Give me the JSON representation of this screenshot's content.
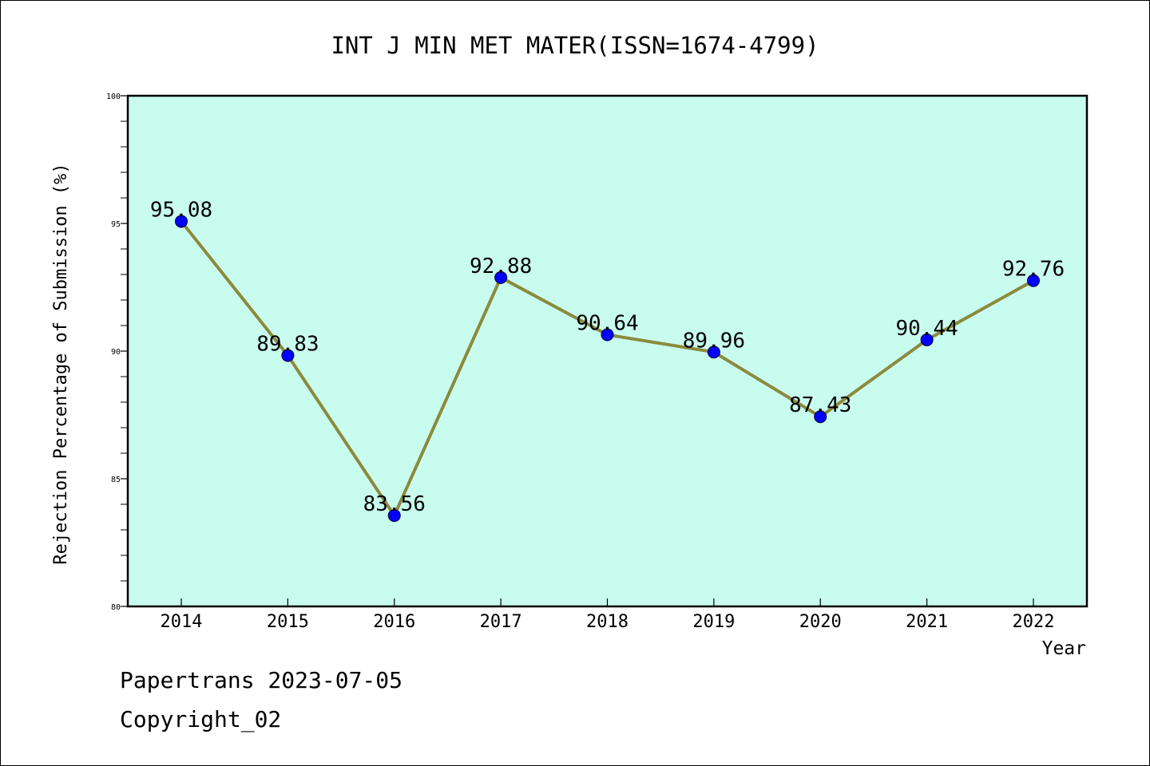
{
  "chart_data": {
    "type": "line",
    "title": "INT J MIN MET MATER(ISSN=1674-4799)",
    "xlabel": "Year",
    "ylabel": "Rejection Percentage of Submission (%)",
    "categories": [
      "2014",
      "2015",
      "2016",
      "2017",
      "2018",
      "2019",
      "2020",
      "2021",
      "2022"
    ],
    "series": [
      {
        "values": [
          95.08,
          89.83,
          83.56,
          92.88,
          90.64,
          89.96,
          87.43,
          90.44,
          92.76
        ],
        "data_labels": [
          "95.08",
          "89.83",
          "83.56",
          "92.88",
          "90.64",
          "89.96",
          "87.43",
          "90.44",
          "92.76"
        ]
      }
    ],
    "ylim": [
      80,
      100
    ],
    "yticks": [
      "80",
      "85",
      "90",
      "95",
      "100"
    ],
    "grid": false,
    "colors": {
      "plot_background": "#c8fcee",
      "line": "#8b8a3c",
      "marker": "#0000ff"
    }
  },
  "footer": {
    "line1": "Papertrans 2023-07-05",
    "line2": "Copyright_02"
  }
}
